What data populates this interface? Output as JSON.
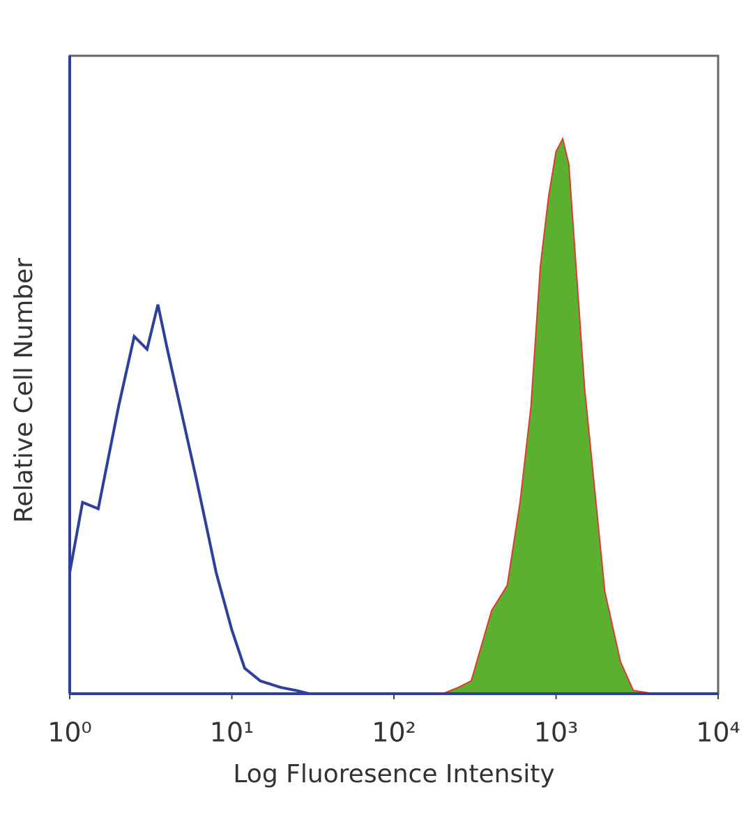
{
  "chart_data": {
    "type": "histogram-overlay",
    "xlabel": "Log Fluoresence Intensity",
    "ylabel": "Relative Cell Number",
    "xscale": "log",
    "xlim": [
      1,
      10000
    ],
    "ylim": [
      0,
      100
    ],
    "xticks": [
      {
        "value": 1,
        "label": "10⁰"
      },
      {
        "value": 10,
        "label": "10¹"
      },
      {
        "value": 100,
        "label": "10²"
      },
      {
        "value": 1000,
        "label": "10³"
      },
      {
        "value": 10000,
        "label": "10⁴"
      }
    ],
    "x": [
      1,
      1.2,
      1.5,
      2,
      2.5,
      3,
      3.5,
      4,
      5,
      6,
      7,
      8,
      10,
      12,
      15,
      20,
      25,
      30,
      50,
      100,
      200,
      250,
      300,
      400,
      500,
      600,
      700,
      800,
      900,
      1000,
      1100,
      1200,
      1500,
      2000,
      2500,
      3000,
      4000,
      10000
    ],
    "series": [
      {
        "color": "#2e3f9e",
        "fill": false,
        "values": [
          19,
          30,
          29,
          45,
          56,
          54,
          61,
          54,
          43,
          34,
          26,
          19,
          10,
          4,
          2,
          1,
          0.5,
          0,
          0,
          0,
          0,
          0,
          0,
          0,
          0,
          0,
          0,
          0,
          0,
          0,
          0,
          0,
          0,
          0,
          0,
          0,
          0,
          0
        ]
      },
      {
        "color": "#e03a2f",
        "fill": "#5cb030",
        "values": [
          0,
          0,
          0,
          0,
          0,
          0,
          0,
          0,
          0,
          0,
          0,
          0,
          0,
          0,
          0,
          0,
          0,
          0,
          0,
          0,
          0,
          1,
          2,
          13,
          17,
          30,
          45,
          67,
          78,
          85,
          87,
          83,
          48,
          16,
          5,
          0.5,
          0,
          0
        ]
      }
    ]
  }
}
